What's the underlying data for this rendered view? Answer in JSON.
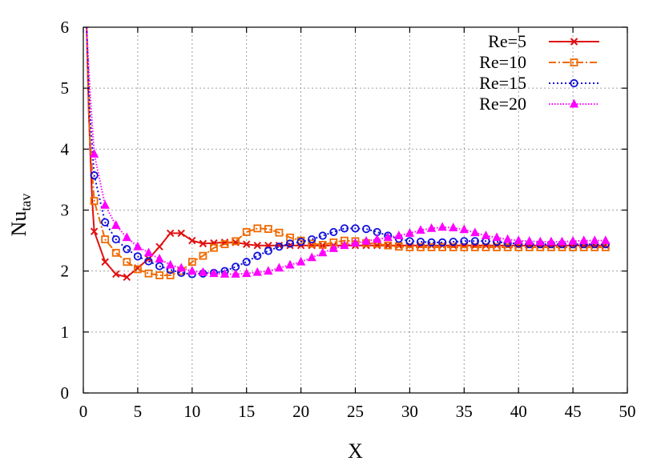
{
  "chart_data": {
    "type": "line",
    "xlabel": "X",
    "ylabel": "Nu",
    "ylabel_sub": "tav",
    "xlim": [
      0,
      50
    ],
    "ylim": [
      0,
      6
    ],
    "xticks": [
      0,
      5,
      10,
      15,
      20,
      25,
      30,
      35,
      40,
      45,
      50
    ],
    "yticks": [
      0,
      1,
      2,
      3,
      4,
      5,
      6
    ],
    "grid": true,
    "legend_position": "top-right",
    "series": [
      {
        "name": "Re=5",
        "color": "#e01010",
        "dash": "",
        "marker": "x",
        "markers_every": 1,
        "x": [
          0.3,
          0.5,
          0.8,
          1,
          2,
          3,
          4,
          5,
          6,
          7,
          8,
          9,
          10,
          11,
          12,
          13,
          14,
          15,
          16,
          17,
          18,
          19,
          20,
          21,
          22,
          23,
          24,
          25,
          26,
          27,
          28,
          29,
          30,
          31,
          32,
          33,
          34,
          35,
          36,
          37,
          38,
          39,
          40,
          41,
          42,
          43,
          44,
          45,
          46,
          47,
          48
        ],
        "y": [
          6.0,
          4.6,
          3.2,
          2.65,
          2.15,
          1.95,
          1.9,
          2.05,
          2.2,
          2.4,
          2.62,
          2.62,
          2.5,
          2.45,
          2.46,
          2.47,
          2.47,
          2.44,
          2.42,
          2.42,
          2.42,
          2.42,
          2.42,
          2.42,
          2.42,
          2.42,
          2.42,
          2.42,
          2.42,
          2.42,
          2.42,
          2.42,
          2.42,
          2.42,
          2.42,
          2.42,
          2.42,
          2.42,
          2.42,
          2.42,
          2.42,
          2.42,
          2.42,
          2.42,
          2.42,
          2.42,
          2.42,
          2.42,
          2.42,
          2.42,
          2.42
        ]
      },
      {
        "name": "Re=10",
        "color": "#f06a00",
        "dash": "9 3 2 3",
        "marker": "square",
        "markers_every": 1,
        "x": [
          0.3,
          0.6,
          1,
          2,
          3,
          4,
          5,
          6,
          7,
          8,
          9,
          10,
          11,
          12,
          13,
          14,
          15,
          16,
          17,
          18,
          19,
          20,
          21,
          22,
          23,
          24,
          25,
          26,
          27,
          28,
          29,
          30,
          31,
          32,
          33,
          34,
          35,
          36,
          37,
          38,
          39,
          40,
          41,
          42,
          43,
          44,
          45,
          46,
          47,
          48
        ],
        "y": [
          6.0,
          4.2,
          3.15,
          2.52,
          2.3,
          2.15,
          2.03,
          1.96,
          1.93,
          1.93,
          2.0,
          2.15,
          2.25,
          2.38,
          2.44,
          2.49,
          2.64,
          2.7,
          2.69,
          2.63,
          2.55,
          2.5,
          2.45,
          2.43,
          2.47,
          2.5,
          2.49,
          2.46,
          2.45,
          2.42,
          2.4,
          2.39,
          2.39,
          2.39,
          2.39,
          2.39,
          2.39,
          2.39,
          2.39,
          2.39,
          2.39,
          2.39,
          2.39,
          2.39,
          2.39,
          2.39,
          2.39,
          2.39,
          2.39,
          2.39
        ]
      },
      {
        "name": "Re=15",
        "color": "#1010dd",
        "dash": "2 3",
        "marker": "circle",
        "markers_every": 1,
        "x": [
          0.3,
          0.6,
          1,
          2,
          3,
          4,
          5,
          6,
          7,
          8,
          9,
          10,
          11,
          12,
          13,
          14,
          15,
          16,
          17,
          18,
          19,
          20,
          21,
          22,
          23,
          24,
          25,
          26,
          27,
          28,
          29,
          30,
          31,
          32,
          33,
          34,
          35,
          36,
          37,
          38,
          39,
          40,
          41,
          42,
          43,
          44,
          45,
          46,
          47,
          48
        ],
        "y": [
          6.0,
          4.6,
          3.57,
          2.8,
          2.52,
          2.36,
          2.24,
          2.16,
          2.08,
          2.02,
          1.97,
          1.95,
          1.96,
          1.97,
          2.0,
          2.07,
          2.15,
          2.25,
          2.33,
          2.4,
          2.45,
          2.48,
          2.52,
          2.58,
          2.64,
          2.7,
          2.7,
          2.69,
          2.64,
          2.58,
          2.53,
          2.49,
          2.48,
          2.47,
          2.47,
          2.48,
          2.49,
          2.49,
          2.49,
          2.48,
          2.46,
          2.45,
          2.44,
          2.44,
          2.44,
          2.44,
          2.44,
          2.44,
          2.44,
          2.44
        ]
      },
      {
        "name": "Re=20",
        "color": "#ff00ff",
        "dash": "1.5 2",
        "marker": "triangle",
        "markers_every": 1,
        "x": [
          0.3,
          0.6,
          1,
          2,
          3,
          4,
          5,
          6,
          7,
          8,
          9,
          10,
          11,
          12,
          13,
          14,
          15,
          16,
          17,
          18,
          19,
          20,
          21,
          22,
          23,
          24,
          25,
          26,
          27,
          28,
          29,
          30,
          31,
          32,
          33,
          34,
          35,
          36,
          37,
          38,
          39,
          40,
          41,
          42,
          43,
          44,
          45,
          46,
          47,
          48
        ],
        "y": [
          6.0,
          5.0,
          3.92,
          3.08,
          2.75,
          2.55,
          2.4,
          2.3,
          2.2,
          2.1,
          2.05,
          2.0,
          1.98,
          1.96,
          1.95,
          1.95,
          1.96,
          1.98,
          2.0,
          2.05,
          2.1,
          2.15,
          2.22,
          2.3,
          2.37,
          2.42,
          2.46,
          2.49,
          2.52,
          2.55,
          2.58,
          2.62,
          2.67,
          2.7,
          2.72,
          2.71,
          2.68,
          2.63,
          2.58,
          2.55,
          2.52,
          2.5,
          2.49,
          2.48,
          2.48,
          2.48,
          2.49,
          2.5,
          2.5,
          2.5
        ]
      }
    ]
  }
}
